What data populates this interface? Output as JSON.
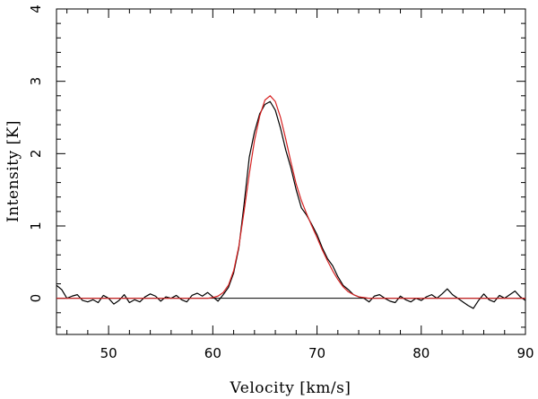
{
  "chart_data": {
    "type": "line",
    "xlabel": "Velocity  [km/s]",
    "ylabel": "Intensity [K]",
    "xlim": [
      45,
      90
    ],
    "ylim": [
      -0.5,
      4
    ],
    "x_ticks": [
      50,
      60,
      70,
      80,
      90
    ],
    "y_ticks": [
      0,
      1,
      2,
      3,
      4
    ],
    "zero_line": true,
    "grid": false,
    "series": [
      {
        "color": "#000000",
        "x": [
          45.0,
          45.5,
          46.0,
          46.5,
          47.0,
          47.5,
          48.0,
          48.5,
          49.0,
          49.5,
          50.0,
          50.5,
          51.0,
          51.5,
          52.0,
          52.5,
          53.0,
          53.5,
          54.0,
          54.5,
          55.0,
          55.5,
          56.0,
          56.5,
          57.0,
          57.5,
          58.0,
          58.5,
          59.0,
          59.5,
          60.0,
          60.5,
          61.0,
          61.5,
          62.0,
          62.5,
          63.0,
          63.5,
          64.0,
          64.5,
          65.0,
          65.5,
          66.0,
          66.5,
          67.0,
          67.5,
          68.0,
          68.5,
          69.0,
          69.5,
          70.0,
          70.5,
          71.0,
          71.5,
          72.0,
          72.5,
          73.0,
          73.5,
          74.0,
          74.5,
          75.0,
          75.5,
          76.0,
          76.5,
          77.0,
          77.5,
          78.0,
          78.5,
          79.0,
          79.5,
          80.0,
          80.5,
          81.0,
          81.5,
          82.0,
          82.5,
          83.0,
          83.5,
          84.0,
          84.5,
          85.0,
          85.5,
          86.0,
          86.5,
          87.0,
          87.5,
          88.0,
          88.5,
          89.0,
          89.5,
          90.0
        ],
        "y": [
          0.18,
          0.12,
          0.0,
          0.03,
          0.05,
          -0.03,
          -0.05,
          -0.02,
          -0.06,
          0.04,
          0.0,
          -0.08,
          -0.03,
          0.05,
          -0.06,
          -0.02,
          -0.05,
          0.02,
          0.06,
          0.03,
          -0.04,
          0.02,
          0.0,
          0.04,
          -0.02,
          -0.05,
          0.04,
          0.07,
          0.03,
          0.08,
          0.02,
          -0.04,
          0.05,
          0.15,
          0.35,
          0.7,
          1.3,
          1.95,
          2.3,
          2.55,
          2.68,
          2.72,
          2.6,
          2.35,
          2.05,
          1.8,
          1.5,
          1.25,
          1.15,
          1.02,
          0.88,
          0.7,
          0.55,
          0.45,
          0.3,
          0.18,
          0.12,
          0.05,
          0.02,
          0.0,
          -0.05,
          0.03,
          0.05,
          0.0,
          -0.04,
          -0.06,
          0.03,
          -0.02,
          -0.05,
          0.0,
          -0.03,
          0.02,
          0.05,
          0.0,
          0.06,
          0.13,
          0.05,
          0.0,
          -0.05,
          -0.1,
          -0.14,
          -0.03,
          0.06,
          -0.02,
          -0.05,
          0.04,
          0.0,
          0.05,
          0.1,
          0.02,
          -0.03
        ]
      },
      {
        "color": "#d62020",
        "x": [
          45.0,
          45.5,
          46.0,
          46.5,
          47.0,
          47.5,
          48.0,
          48.5,
          49.0,
          49.5,
          50.0,
          50.5,
          51.0,
          51.5,
          52.0,
          52.5,
          53.0,
          53.5,
          54.0,
          54.5,
          55.0,
          55.5,
          56.0,
          56.5,
          57.0,
          57.5,
          58.0,
          58.5,
          59.0,
          59.5,
          60.0,
          60.5,
          61.0,
          61.5,
          62.0,
          62.5,
          63.0,
          63.5,
          64.0,
          64.5,
          65.0,
          65.5,
          66.0,
          66.5,
          67.0,
          67.5,
          68.0,
          68.5,
          69.0,
          69.5,
          70.0,
          70.5,
          71.0,
          71.5,
          72.0,
          72.5,
          73.0,
          73.5,
          74.0,
          74.5,
          75.0,
          75.5,
          76.0,
          76.5,
          77.0,
          77.5,
          78.0,
          78.5,
          79.0,
          79.5,
          80.0,
          80.5,
          81.0,
          81.5,
          82.0,
          82.5,
          83.0,
          83.5,
          84.0,
          84.5,
          85.0,
          85.5,
          86.0,
          86.5,
          87.0,
          87.5,
          88.0,
          88.5,
          89.0,
          89.5,
          90.0
        ],
        "y": [
          0.0,
          0.0,
          0.0,
          0.0,
          0.0,
          0.0,
          0.0,
          0.0,
          0.0,
          0.0,
          0.0,
          0.0,
          0.0,
          0.0,
          0.0,
          0.0,
          0.0,
          0.0,
          0.0,
          0.0,
          0.0,
          0.0,
          0.0,
          0.0,
          0.0,
          0.0,
          0.0,
          0.0,
          0.0,
          0.0,
          0.01,
          0.03,
          0.08,
          0.18,
          0.38,
          0.72,
          1.2,
          1.72,
          2.18,
          2.52,
          2.74,
          2.8,
          2.72,
          2.5,
          2.2,
          1.88,
          1.58,
          1.35,
          1.17,
          1.0,
          0.84,
          0.67,
          0.52,
          0.38,
          0.26,
          0.16,
          0.09,
          0.05,
          0.02,
          0.01,
          0.0,
          0.0,
          0.0,
          0.0,
          0.0,
          0.0,
          0.0,
          0.0,
          0.0,
          0.0,
          0.0,
          0.0,
          0.0,
          0.0,
          0.0,
          0.0,
          0.0,
          0.0,
          0.0,
          0.0,
          0.0,
          0.0,
          0.0,
          0.0,
          0.0,
          0.0,
          0.0,
          0.0,
          0.0,
          0.0,
          0.0
        ]
      }
    ]
  }
}
